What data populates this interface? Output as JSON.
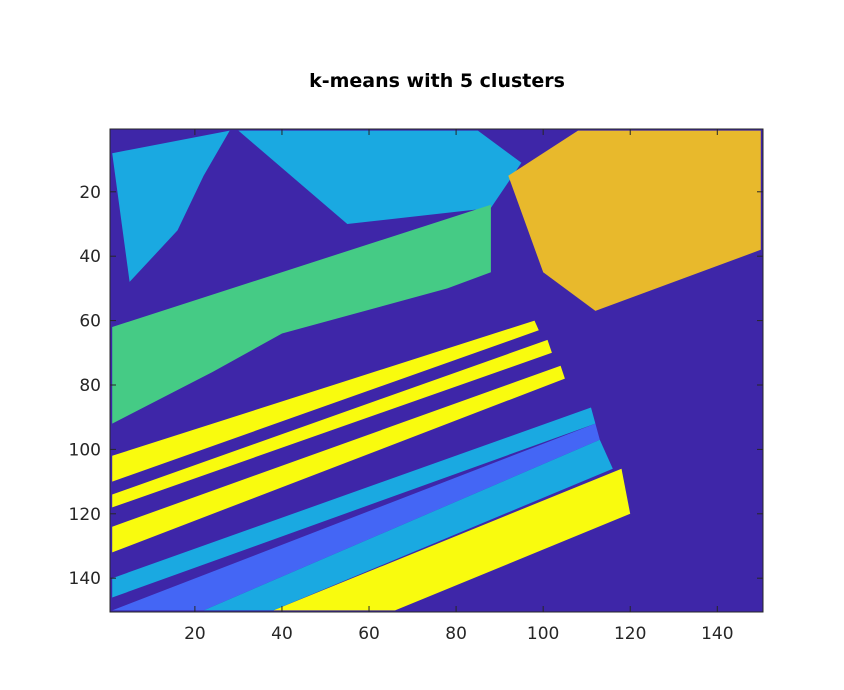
{
  "chart_data": {
    "type": "heatmap",
    "title": "k-means with 5 clusters",
    "xlabel": "",
    "ylabel": "",
    "xlim": [
      0.5,
      150.5
    ],
    "ylim": [
      150.5,
      0.5
    ],
    "y_direction": "reverse",
    "grid": false,
    "legend": "none",
    "x_ticks": [
      20,
      40,
      60,
      80,
      100,
      120,
      140
    ],
    "y_ticks": [
      20,
      40,
      60,
      80,
      100,
      120,
      140
    ],
    "x_tick_labels": [
      "20",
      "40",
      "60",
      "80",
      "100",
      "120",
      "140"
    ],
    "y_tick_labels": [
      "20",
      "40",
      "60",
      "80",
      "100",
      "120",
      "140"
    ],
    "clusters": [
      {
        "id": 1,
        "color": "#3e26a8"
      },
      {
        "id": 2,
        "color": "#4466f5"
      },
      {
        "id": 3,
        "color": "#1aa9e1"
      },
      {
        "id": 4,
        "color": "#45cb85"
      },
      {
        "id": 5,
        "color": "#e8b92c"
      },
      {
        "id": 6,
        "color": "#f9fb0e"
      }
    ],
    "regions": [
      {
        "cluster": 3,
        "x": [
          [
            1,
            8
          ],
          [
            5,
            48
          ],
          [
            16,
            32
          ],
          [
            22,
            15
          ],
          [
            28,
            1
          ]
        ]
      },
      {
        "cluster": 3,
        "x": [
          [
            13,
            1
          ],
          [
            30,
            1
          ],
          [
            55,
            30
          ],
          [
            88,
            25
          ],
          [
            95,
            11
          ],
          [
            85,
            1
          ]
        ]
      },
      {
        "cluster": 4,
        "x": [
          [
            1,
            62
          ],
          [
            88,
            24
          ],
          [
            88,
            45
          ],
          [
            78,
            50
          ],
          [
            40,
            64
          ],
          [
            24,
            76
          ],
          [
            1,
            92
          ]
        ]
      },
      {
        "cluster": 5,
        "x": [
          [
            92,
            15
          ],
          [
            108,
            1
          ],
          [
            150,
            1
          ],
          [
            150,
            38
          ],
          [
            112,
            57
          ],
          [
            100,
            45
          ]
        ]
      },
      {
        "cluster": 6,
        "x": [
          [
            1,
            102
          ],
          [
            98,
            60
          ],
          [
            99,
            63
          ],
          [
            1,
            110
          ]
        ]
      },
      {
        "cluster": 6,
        "x": [
          [
            1,
            114
          ],
          [
            101,
            66
          ],
          [
            102,
            70
          ],
          [
            1,
            118
          ]
        ]
      },
      {
        "cluster": 6,
        "x": [
          [
            1,
            124
          ],
          [
            104,
            74
          ],
          [
            105,
            78
          ],
          [
            1,
            132
          ]
        ]
      },
      {
        "cluster": 6,
        "x": [
          [
            38,
            150
          ],
          [
            118,
            106
          ],
          [
            120,
            120
          ],
          [
            66,
            150
          ]
        ]
      },
      {
        "cluster": 2,
        "x": [
          [
            1,
            150
          ],
          [
            112,
            92
          ],
          [
            113,
            97
          ],
          [
            22,
            150
          ]
        ]
      },
      {
        "cluster": 3,
        "x": [
          [
            1,
            140
          ],
          [
            111,
            87
          ],
          [
            112,
            92
          ],
          [
            1,
            146
          ]
        ]
      },
      {
        "cluster": 3,
        "x": [
          [
            22,
            150
          ],
          [
            113,
            97
          ],
          [
            116,
            106
          ],
          [
            38,
            150
          ]
        ]
      }
    ]
  }
}
